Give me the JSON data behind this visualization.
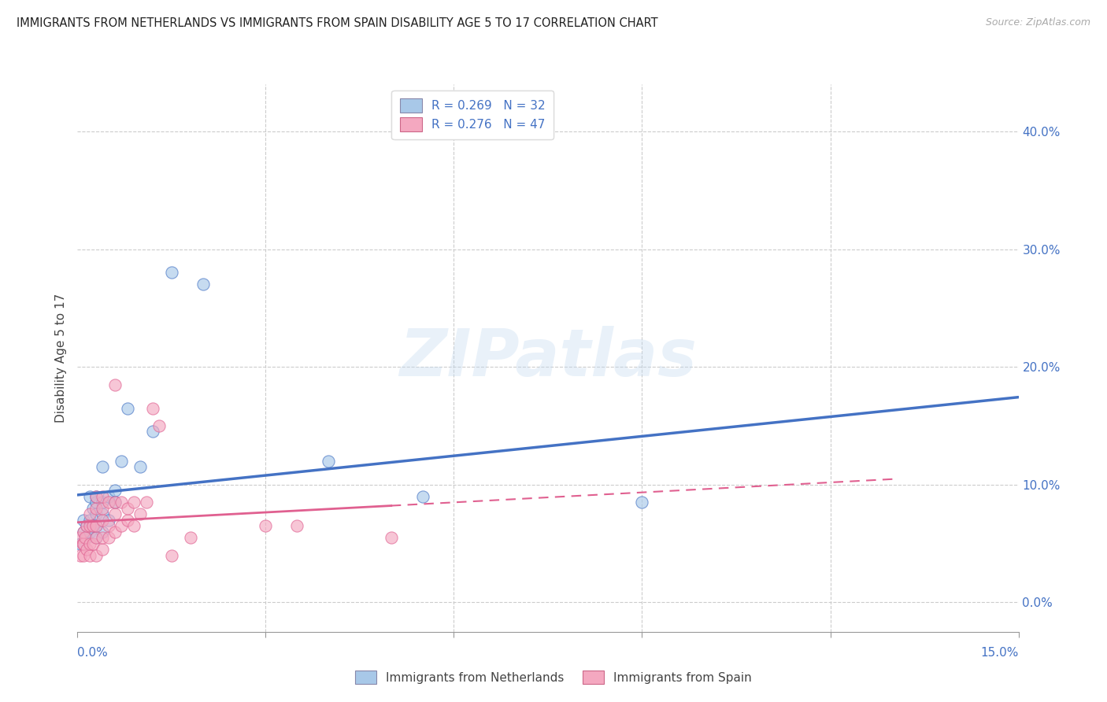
{
  "title": "IMMIGRANTS FROM NETHERLANDS VS IMMIGRANTS FROM SPAIN DISABILITY AGE 5 TO 17 CORRELATION CHART",
  "source": "Source: ZipAtlas.com",
  "ylabel": "Disability Age 5 to 17",
  "legend_label1": "Immigrants from Netherlands",
  "legend_label2": "Immigrants from Spain",
  "R1": 0.269,
  "N1": 32,
  "R2": 0.276,
  "N2": 47,
  "xlim": [
    0.0,
    0.15
  ],
  "ylim": [
    -0.025,
    0.44
  ],
  "yticks": [
    0.0,
    0.1,
    0.2,
    0.3,
    0.4
  ],
  "color_blue": "#a8c8e8",
  "color_pink": "#f4a8c0",
  "color_line_blue": "#4472c4",
  "color_line_pink": "#e06090",
  "color_axis_label": "#4472c4",
  "color_title": "#222222",
  "watermark_text": "ZIPatlas",
  "nl_x": [
    0.0005,
    0.001,
    0.001,
    0.0015,
    0.0015,
    0.002,
    0.002,
    0.002,
    0.0025,
    0.0025,
    0.003,
    0.003,
    0.003,
    0.003,
    0.003,
    0.004,
    0.004,
    0.004,
    0.004,
    0.005,
    0.005,
    0.006,
    0.006,
    0.007,
    0.008,
    0.01,
    0.012,
    0.015,
    0.02,
    0.04,
    0.055,
    0.09
  ],
  "nl_y": [
    0.05,
    0.06,
    0.07,
    0.055,
    0.065,
    0.06,
    0.07,
    0.09,
    0.065,
    0.08,
    0.055,
    0.065,
    0.075,
    0.085,
    0.09,
    0.06,
    0.075,
    0.085,
    0.115,
    0.07,
    0.09,
    0.085,
    0.095,
    0.12,
    0.165,
    0.115,
    0.145,
    0.28,
    0.27,
    0.12,
    0.09,
    0.085
  ],
  "es_x": [
    0.0003,
    0.0005,
    0.0008,
    0.001,
    0.001,
    0.001,
    0.0012,
    0.0015,
    0.0015,
    0.002,
    0.002,
    0.002,
    0.002,
    0.0025,
    0.0025,
    0.003,
    0.003,
    0.003,
    0.003,
    0.003,
    0.004,
    0.004,
    0.004,
    0.004,
    0.004,
    0.005,
    0.005,
    0.005,
    0.006,
    0.006,
    0.006,
    0.006,
    0.007,
    0.007,
    0.008,
    0.008,
    0.009,
    0.009,
    0.01,
    0.011,
    0.012,
    0.013,
    0.015,
    0.018,
    0.03,
    0.035,
    0.05
  ],
  "es_y": [
    0.055,
    0.04,
    0.05,
    0.04,
    0.05,
    0.06,
    0.055,
    0.045,
    0.065,
    0.04,
    0.05,
    0.065,
    0.075,
    0.05,
    0.065,
    0.04,
    0.055,
    0.065,
    0.08,
    0.09,
    0.045,
    0.055,
    0.07,
    0.08,
    0.09,
    0.055,
    0.065,
    0.085,
    0.06,
    0.075,
    0.085,
    0.185,
    0.065,
    0.085,
    0.07,
    0.08,
    0.065,
    0.085,
    0.075,
    0.085,
    0.165,
    0.15,
    0.04,
    0.055,
    0.065,
    0.065,
    0.055
  ]
}
